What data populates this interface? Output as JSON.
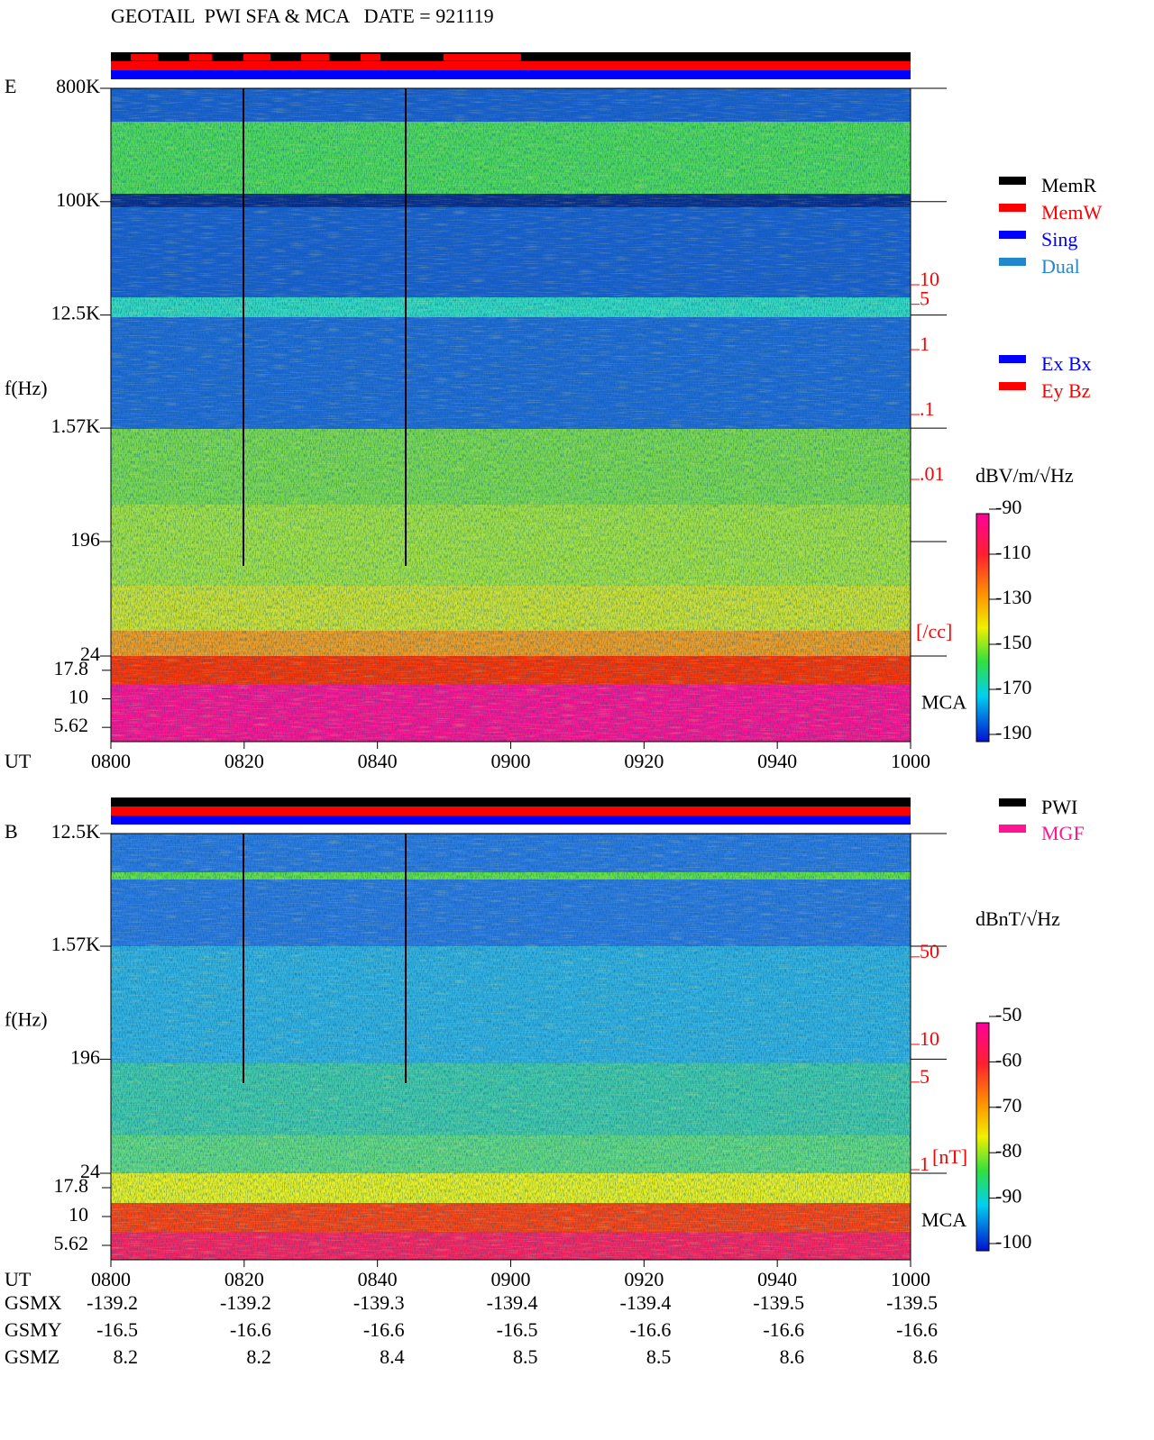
{
  "title": "GEOTAIL  PWI SFA & MCA   DATE = 921119",
  "legend_modes": [
    {
      "name": "MemR",
      "color": "#000000"
    },
    {
      "name": "MemW",
      "color": "#ff0000"
    },
    {
      "name": "Sing",
      "color": "#0000ff"
    },
    {
      "name": "Dual",
      "color": "#2288cc"
    }
  ],
  "legend_components": [
    {
      "name": "Ex Bx",
      "color": "#0000ff"
    },
    {
      "name": "Ey Bz",
      "color": "#ff0000"
    }
  ],
  "legend_sources": [
    {
      "name": "PWI",
      "color": "#000000"
    },
    {
      "name": "MGF",
      "color": "#ff1493"
    }
  ],
  "chart_data": [
    {
      "type": "spectrogram",
      "component": "E",
      "y_label": "f(Hz)",
      "x_label": "UT",
      "categories": [
        "0800",
        "0820",
        "0840",
        "0900",
        "0920",
        "0940",
        "1000"
      ],
      "log_y": true,
      "ylim": [
        24,
        800000
      ],
      "yticks": [
        {
          "value": 800000,
          "label": "800K"
        },
        {
          "value": 100000,
          "label": "100K"
        },
        {
          "value": 12500,
          "label": "12.5K"
        },
        {
          "value": 1570,
          "label": "1.57K"
        },
        196,
        24
      ],
      "mca_label": "MCA",
      "mca_ticks": [
        17.8,
        10,
        5.62
      ],
      "right_axis": {
        "ticks": [
          10,
          5,
          1,
          {
            "value": 0.1,
            "label": ".1"
          },
          {
            "value": 0.01,
            "label": ".01"
          }
        ],
        "unit": "[/cc]",
        "color": "#ff0000"
      },
      "colorbar": {
        "unit": "dBV/m/√Hz",
        "lim": [
          -190,
          -90
        ],
        "ticks": [
          -90,
          -110,
          -130,
          -150,
          -170,
          -190
        ]
      }
    },
    {
      "type": "spectrogram",
      "component": "B",
      "y_label": "f(Hz)",
      "x_label": "UT",
      "categories": [
        "0800",
        "0820",
        "0840",
        "0900",
        "0920",
        "0940",
        "1000"
      ],
      "log_y": true,
      "ylim": [
        24,
        12500
      ],
      "yticks": [
        {
          "value": 12500,
          "label": "12.5K"
        },
        {
          "value": 1570,
          "label": "1.57K"
        },
        196,
        24
      ],
      "mca_label": "MCA",
      "mca_ticks": [
        17.8,
        10,
        5.62
      ],
      "right_axis": {
        "ticks": [
          50,
          10,
          5,
          1
        ],
        "unit": "[nT]",
        "color": "#ff0000"
      },
      "colorbar": {
        "unit": "dBnT/√Hz",
        "lim": [
          -100,
          -50
        ],
        "ticks": [
          -50,
          -60,
          -70,
          -80,
          -90,
          -100
        ]
      }
    }
  ],
  "orbit": {
    "labels": [
      "GSMX",
      "GSMY",
      "GSMZ"
    ],
    "rows": [
      [
        -139.2,
        -139.2,
        -139.3,
        -139.4,
        -139.4,
        -139.5,
        -139.5
      ],
      [
        -16.5,
        -16.6,
        -16.6,
        -16.5,
        -16.6,
        -16.6,
        -16.6
      ],
      [
        8.2,
        8.2,
        8.4,
        8.5,
        8.5,
        8.6,
        8.6
      ]
    ]
  }
}
